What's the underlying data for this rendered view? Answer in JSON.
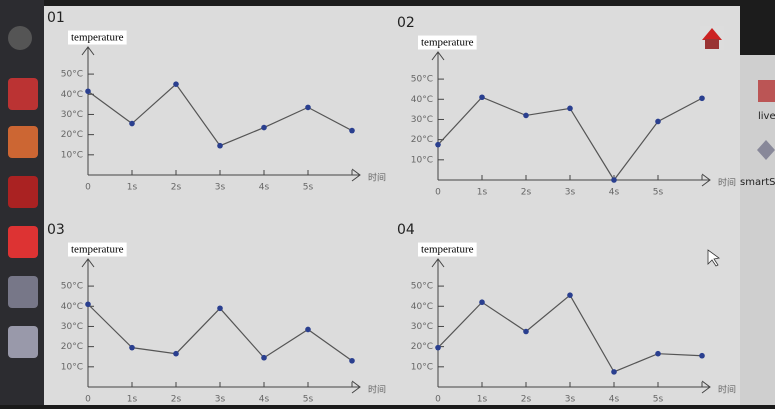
{
  "chart_data": [
    {
      "type": "line",
      "title": "01",
      "y_label": "temperature",
      "x_label": "时间",
      "categories": [
        "0",
        "1s",
        "2s",
        "3s",
        "4s",
        "5s",
        null
      ],
      "values": [
        41.5,
        25.5,
        45,
        14.5,
        23.5,
        33.5,
        22
      ],
      "color": "#2a3f8f",
      "ylim": [
        0,
        55
      ],
      "yticks": [
        {
          "value": 10,
          "label": "10°C"
        },
        {
          "value": 20,
          "label": "20°C"
        },
        {
          "value": 30,
          "label": "30°C"
        },
        {
          "value": 40,
          "label": "40°C"
        },
        {
          "value": 50,
          "label": "50°C"
        }
      ]
    },
    {
      "type": "line",
      "title": "02",
      "y_label": "temperature",
      "x_label": "时间",
      "categories": [
        "0",
        "1s",
        "2s",
        "3s",
        "4s",
        "5s",
        null
      ],
      "values": [
        17.5,
        41,
        32,
        35.5,
        0,
        29,
        40.5
      ],
      "color": "#2a3f8f",
      "ylim": [
        0,
        55
      ],
      "yticks": [
        {
          "value": 10,
          "label": "10°C"
        },
        {
          "value": 20,
          "label": "20°C"
        },
        {
          "value": 30,
          "label": "30°C"
        },
        {
          "value": 40,
          "label": "40°C"
        },
        {
          "value": 50,
          "label": "50°C"
        }
      ]
    },
    {
      "type": "line",
      "title": "03",
      "y_label": "temperature",
      "x_label": "时间",
      "categories": [
        "0",
        "1s",
        "2s",
        "3s",
        "4s",
        "5s",
        null
      ],
      "values": [
        41,
        19.5,
        16.5,
        39,
        14.5,
        28.5,
        13
      ],
      "color": "#2a3f8f",
      "ylim": [
        0,
        55
      ],
      "yticks": [
        {
          "value": 10,
          "label": "10°C"
        },
        {
          "value": 20,
          "label": "20°C"
        },
        {
          "value": 30,
          "label": "30°C"
        },
        {
          "value": 40,
          "label": "40°C"
        },
        {
          "value": 50,
          "label": "50°C"
        }
      ]
    },
    {
      "type": "line",
      "title": "04",
      "y_label": "temperature",
      "x_label": "时间",
      "categories": [
        "0",
        "1s",
        "2s",
        "3s",
        "4s",
        "5s",
        null
      ],
      "values": [
        19.5,
        42,
        27.5,
        45.5,
        7.5,
        16.5,
        15.5
      ],
      "color": "#2a3f8f",
      "ylim": [
        0,
        55
      ],
      "yticks": [
        {
          "value": 10,
          "label": "10°C"
        },
        {
          "value": 20,
          "label": "20°C"
        },
        {
          "value": 30,
          "label": "30°C"
        },
        {
          "value": 40,
          "label": "40°C"
        },
        {
          "value": 50,
          "label": "50°C"
        }
      ]
    }
  ],
  "desktop": [
    "live",
    "smartS"
  ]
}
